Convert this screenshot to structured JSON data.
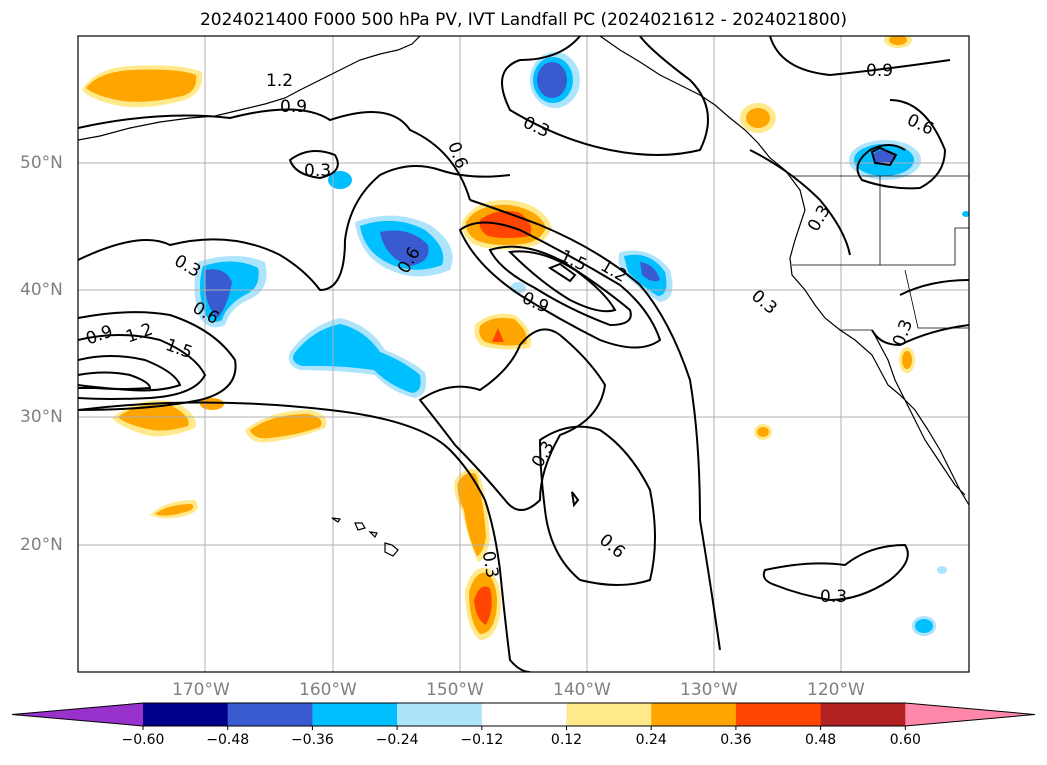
{
  "title": "2024021400 F000 500 hPa PV, IVT Landfall PC (2024021612 - 2024021800)",
  "lat_labels": [
    "50°N",
    "40°N",
    "30°N",
    "20°N"
  ],
  "lon_labels": [
    "170°W",
    "160°W",
    "150°W",
    "140°W",
    "130°W",
    "120°W"
  ],
  "contour_labels": [
    "1.2",
    "0.9",
    "0.3",
    "0.6",
    "0.3",
    "0.9",
    "0.6",
    "0.3",
    "0.3",
    "1.5",
    "1.2",
    "0.9",
    "0.6",
    "0.9",
    "1.2",
    "1.5",
    "0.6",
    "0.3",
    "0.3",
    "0.3",
    "0.6",
    "0.3",
    "0.3"
  ],
  "colorbar": {
    "ticks": [
      "−0.60",
      "−0.48",
      "−0.36",
      "−0.24",
      "−0.12",
      "0.12",
      "0.24",
      "0.36",
      "0.48",
      "0.60"
    ],
    "colors": [
      "#9932cc",
      "#00008b",
      "#3a5bd0",
      "#00bfff",
      "#ade3fb",
      "#ffffff",
      "#ffe98a",
      "#ffa500",
      "#ff4500",
      "#b22222",
      "#ff88aa"
    ]
  }
}
